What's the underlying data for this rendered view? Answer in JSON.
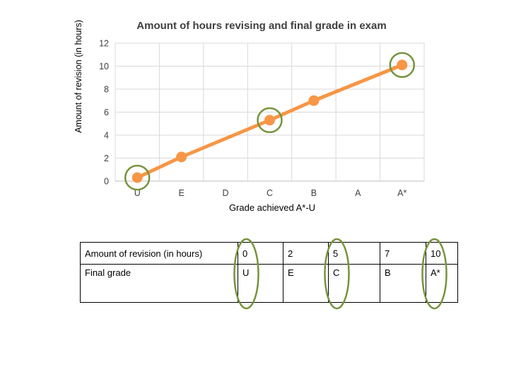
{
  "chart_data": {
    "type": "line",
    "title": "Amount of hours revising and final grade in exam",
    "xlabel": "Grade achieved A*-U",
    "ylabel": "Amount of revision (in hours)",
    "categories": [
      "U",
      "E",
      "D",
      "C",
      "B",
      "A",
      "A*"
    ],
    "series": [
      {
        "points": [
          {
            "x": "U",
            "y": 0.3
          },
          {
            "x": "E",
            "y": 2.1
          },
          {
            "x": "C",
            "y": 5.3
          },
          {
            "x": "B",
            "y": 7.0
          },
          {
            "x": "A*",
            "y": 10.1
          }
        ]
      }
    ],
    "yticks": [
      "0",
      "2",
      "4",
      "6",
      "8",
      "10",
      "12"
    ],
    "ylim": [
      0,
      12
    ],
    "grid": true,
    "colors": {
      "line": "#f79646",
      "marker": "#f79646",
      "highlight": "#77933c",
      "grid": "#d9d9d9"
    },
    "highlighted_categories": [
      "U",
      "C",
      "A*"
    ]
  },
  "table": {
    "row1_header": "Amount of revision (in hours)",
    "row1_values": [
      "0",
      "2",
      "5",
      "7",
      "10"
    ],
    "row2_header": "Final grade",
    "row2_values": [
      "U",
      "E",
      "C",
      "B",
      "A*"
    ],
    "highlighted_columns": [
      0,
      2,
      4
    ]
  }
}
